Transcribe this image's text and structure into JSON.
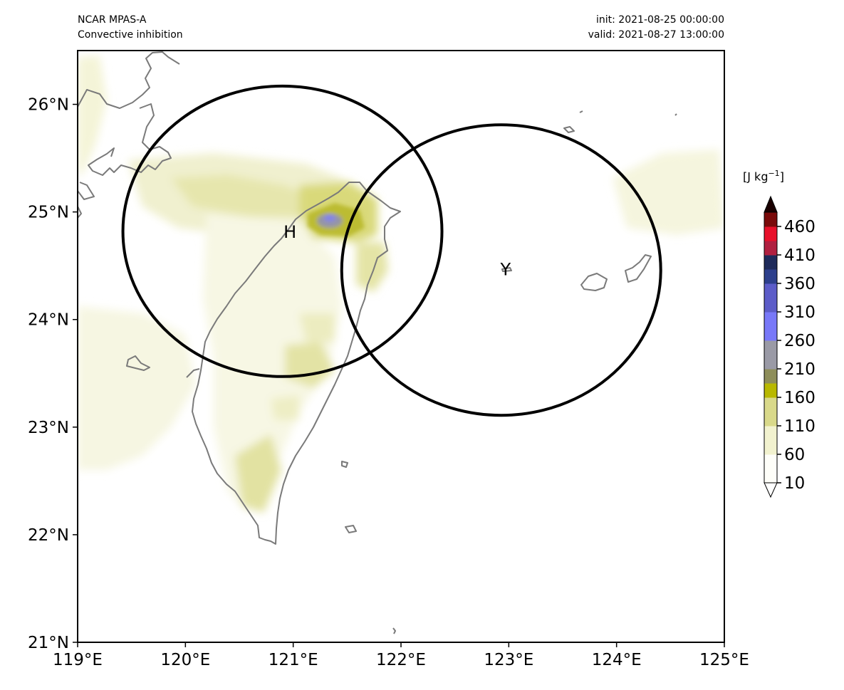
{
  "header": {
    "model": "NCAR MPAS-A",
    "field": "Convective inhibition",
    "init": "init: 2021-08-25 00:00:00",
    "valid": "valid: 2021-08-27 13:00:00"
  },
  "map": {
    "lon_range": [
      119,
      125
    ],
    "lat_range": [
      21,
      26.5
    ],
    "lon_ticks": [
      {
        "value": 119,
        "label": "119°E"
      },
      {
        "value": 120,
        "label": "120°E"
      },
      {
        "value": 121,
        "label": "121°E"
      },
      {
        "value": 122,
        "label": "122°E"
      },
      {
        "value": 123,
        "label": "123°E"
      },
      {
        "value": 124,
        "label": "124°E"
      },
      {
        "value": 125,
        "label": "125°E"
      }
    ],
    "lat_ticks": [
      {
        "value": 21,
        "label": "21°N"
      },
      {
        "value": 22,
        "label": "22°N"
      },
      {
        "value": 23,
        "label": "23°N"
      },
      {
        "value": 24,
        "label": "24°N"
      },
      {
        "value": 25,
        "label": "25°N"
      },
      {
        "value": 26,
        "label": "26°N"
      }
    ],
    "markers": [
      {
        "label": "H",
        "lon": 120.97,
        "lat": 24.82
      },
      {
        "label": "Y",
        "lon": 122.97,
        "lat": 24.47
      }
    ],
    "circles": [
      {
        "lon": 120.9,
        "lat": 24.82,
        "rx_deg": 1.48,
        "ry_deg": 1.35
      },
      {
        "lon": 122.93,
        "lat": 24.46,
        "rx_deg": 1.48,
        "ry_deg": 1.35
      }
    ],
    "coast_color": "#7a7a7a"
  },
  "colorbar": {
    "units_text": "[J kg",
    "units_sup": "−1",
    "units_close": "]",
    "ticks": [
      "460",
      "410",
      "360",
      "310",
      "260",
      "210",
      "160",
      "110",
      "60",
      "10"
    ],
    "levels": [
      {
        "value": 10,
        "color": "#fefef9"
      },
      {
        "value": 60,
        "color": "#f2f2cf"
      },
      {
        "value": 110,
        "color": "#d9d98a"
      },
      {
        "value": 160,
        "color": "#b8b800"
      },
      {
        "value": 185,
        "color": "#8e8e5a"
      },
      {
        "value": 210,
        "color": "#9a9aa6"
      },
      {
        "value": 260,
        "color": "#7878f8"
      },
      {
        "value": 310,
        "color": "#5c5cc8"
      },
      {
        "value": 360,
        "color": "#2d3f8c"
      },
      {
        "value": 385,
        "color": "#1e2a5a"
      },
      {
        "value": 410,
        "color": "#b02040"
      },
      {
        "value": 435,
        "color": "#e8102a"
      },
      {
        "value": 460,
        "color": "#7a0a0a"
      },
      {
        "value": 485,
        "color": "#1a0000"
      }
    ]
  }
}
